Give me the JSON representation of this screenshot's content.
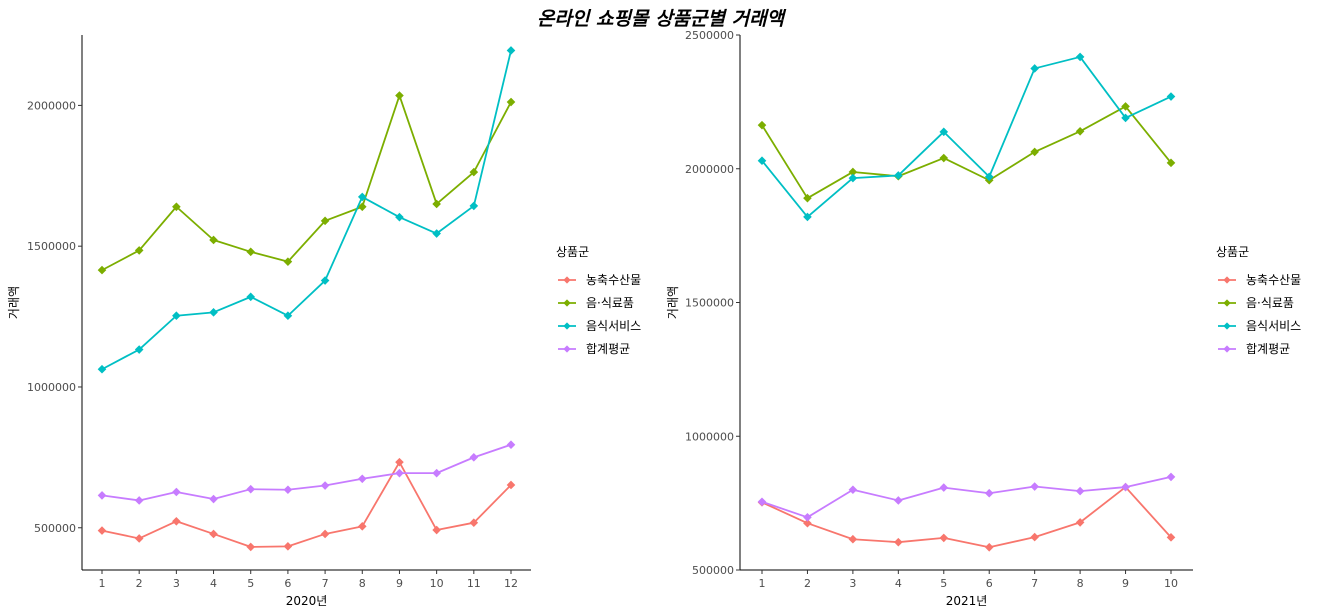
{
  "title": "온라인 쇼핑몰 상품군별 거래액",
  "chart_data": [
    {
      "type": "line",
      "xlabel": "2020년",
      "ylabel": "거래액",
      "x": [
        1,
        2,
        3,
        4,
        5,
        6,
        7,
        8,
        9,
        10,
        11,
        12
      ],
      "ylim": [
        350000,
        2250000
      ],
      "yticks": [
        500000,
        1000000,
        1500000,
        2000000
      ],
      "grid": false,
      "legend_title": "상품군",
      "legend_position": "right",
      "series": [
        {
          "name": "농축수산물",
          "color": "#F8766D",
          "values": [
            490000,
            462000,
            523000,
            478000,
            432000,
            434000,
            478000,
            505000,
            733000,
            492000,
            518000,
            652000
          ]
        },
        {
          "name": "음·식료품",
          "color": "#7CAE00",
          "values": [
            1415000,
            1485000,
            1640000,
            1522000,
            1480000,
            1445000,
            1590000,
            1640000,
            2035000,
            1650000,
            1763000,
            2012000
          ]
        },
        {
          "name": "음식서비스",
          "color": "#00BFC4",
          "values": [
            1063000,
            1133000,
            1253000,
            1265000,
            1320000,
            1253000,
            1378000,
            1675000,
            1603000,
            1545000,
            1643000,
            2195000
          ]
        },
        {
          "name": "합계평균",
          "color": "#C77CFF",
          "values": [
            615000,
            597000,
            627000,
            602000,
            637000,
            635000,
            650000,
            674000,
            694000,
            694000,
            750000,
            795000
          ]
        }
      ]
    },
    {
      "type": "line",
      "xlabel": "2021년",
      "ylabel": "거래액",
      "x": [
        1,
        2,
        3,
        4,
        5,
        6,
        7,
        8,
        9,
        10
      ],
      "ylim": [
        500000,
        2500000
      ],
      "yticks": [
        500000,
        1000000,
        1500000,
        2000000,
        2500000
      ],
      "grid": false,
      "legend_title": "상품군",
      "legend_position": "right",
      "series": [
        {
          "name": "농축수산물",
          "color": "#F8766D",
          "values": [
            753000,
            675000,
            615000,
            604000,
            620000,
            585000,
            623000,
            678000,
            810000,
            622000
          ]
        },
        {
          "name": "음·식료품",
          "color": "#7CAE00",
          "values": [
            2163000,
            1890000,
            1988000,
            1972000,
            2040000,
            1957000,
            2063000,
            2140000,
            2233000,
            2022000
          ]
        },
        {
          "name": "음식서비스",
          "color": "#00BFC4",
          "values": [
            2030000,
            1820000,
            1965000,
            1975000,
            2138000,
            1970000,
            2375000,
            2418000,
            2190000,
            2270000
          ]
        },
        {
          "name": "합계평균",
          "color": "#C77CFF",
          "values": [
            755000,
            697000,
            800000,
            760000,
            808000,
            787000,
            812000,
            795000,
            810000,
            848000
          ]
        }
      ]
    }
  ]
}
